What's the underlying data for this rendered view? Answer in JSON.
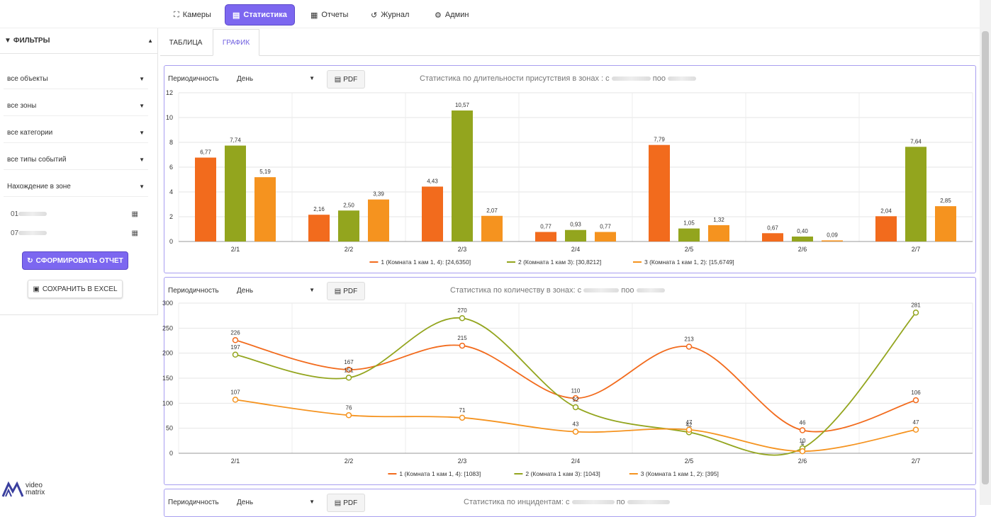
{
  "nav": {
    "tabs": [
      {
        "label": "Камеры",
        "icon": "camera-icon"
      },
      {
        "label": "Статистика",
        "icon": "document-icon",
        "active": true
      },
      {
        "label": "Отчеты",
        "icon": "report-icon"
      },
      {
        "label": "Журнал",
        "icon": "history-icon"
      },
      {
        "label": "Админ",
        "icon": "gears-icon"
      }
    ]
  },
  "sidebar": {
    "title": "ФИЛЬТРЫ",
    "selects": [
      "все объекты",
      "все зоны",
      "все категории",
      "все типы событий",
      "Нахождение в зоне"
    ],
    "date_from": "01",
    "date_to": "07",
    "report_button": "СФОРМИРОВАТЬ ОТЧЕТ",
    "excel_button": "СОХРАНИТЬ В EXCEL"
  },
  "logo": {
    "line1": "video",
    "line2": "matrix"
  },
  "subtabs": {
    "table": "ТАБЛИЦА",
    "graph": "ГРАФИК"
  },
  "panels": {
    "period_label": "Периодичность",
    "period_value": "День",
    "pdf_label": "PDF",
    "titles": [
      "Статистика по длительности присутствия в зонах : с",
      "Статистика по количеству в зонах: с",
      "Статистика по инцидентам: с"
    ],
    "title_after": [
      "поо",
      "поо",
      "по"
    ]
  },
  "colors": {
    "accent": "#7c67f0",
    "series1": "#f26b1d",
    "series2": "#93a51e",
    "series3": "#f5931f"
  },
  "chart_data": [
    {
      "type": "bar",
      "categories": [
        "2/1",
        "2/2",
        "2/3",
        "2/4",
        "2/5",
        "2/6",
        "2/7"
      ],
      "ylim": [
        0,
        12
      ],
      "yticks": [
        0,
        2,
        4,
        6,
        8,
        10,
        12
      ],
      "series": [
        {
          "name": "1 (Комната 1 кам 1, 4): [24,6350]",
          "values": [
            6.77,
            2.16,
            4.43,
            0.77,
            7.79,
            0.67,
            2.04
          ],
          "labels": [
            "6,77",
            "2,16",
            "4,43",
            "0,77",
            "7,79",
            "0,67",
            "2,04"
          ]
        },
        {
          "name": "2 (Комната 1 кам 3): [30,8212]",
          "values": [
            7.74,
            2.5,
            10.57,
            0.93,
            1.05,
            0.4,
            7.64
          ],
          "labels": [
            "7,74",
            "2,50",
            "10,57",
            "0,93",
            "1,05",
            "0,40",
            "7,64"
          ]
        },
        {
          "name": "3 (Комната 1 кам 1, 2): [15,6749]",
          "values": [
            5.19,
            3.39,
            2.07,
            0.77,
            1.32,
            0.09,
            2.85
          ],
          "labels": [
            "5,19",
            "3,39",
            "2,07",
            "0,77",
            "1,32",
            "0,09",
            "2,85"
          ]
        }
      ]
    },
    {
      "type": "line",
      "categories": [
        "2/1",
        "2/2",
        "2/3",
        "2/4",
        "2/5",
        "2/6",
        "2/7"
      ],
      "ylim": [
        0,
        300
      ],
      "yticks": [
        0,
        50,
        100,
        150,
        200,
        250,
        300
      ],
      "series": [
        {
          "name": "1 (Комната 1 кам 1, 4): [1083]",
          "values": [
            226,
            167,
            215,
            110,
            213,
            46,
            106
          ],
          "labels": [
            "226",
            "167",
            "215",
            "110",
            "213",
            "46",
            "106"
          ]
        },
        {
          "name": "2 (Комната 1 кам 3): [1043]",
          "values": [
            197,
            151,
            270,
            92,
            42,
            10,
            281
          ],
          "labels": [
            "197",
            "151",
            "270",
            "92",
            "42",
            "10",
            "281"
          ]
        },
        {
          "name": "3 (Комната 1 кам 1, 2): [395]",
          "values": [
            107,
            76,
            71,
            43,
            47,
            4,
            47
          ],
          "labels": [
            "107",
            "76",
            "71",
            "43",
            "47",
            "4",
            "47"
          ]
        }
      ]
    }
  ]
}
